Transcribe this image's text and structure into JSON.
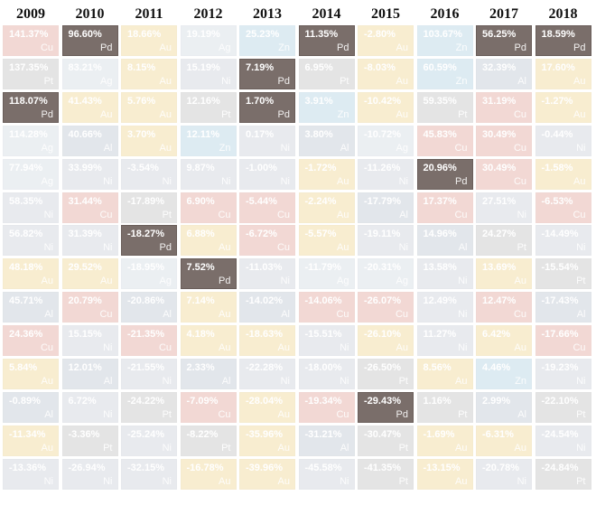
{
  "chart_data": {
    "type": "table",
    "title": "",
    "highlight_symbol": "Pd",
    "columns": [
      "2009",
      "2010",
      "2011",
      "2012",
      "2013",
      "2014",
      "2015",
      "2016",
      "2017",
      "2018"
    ],
    "rows": [
      [
        [
          "141.37%",
          "Cu"
        ],
        [
          "96.60%",
          "Pd"
        ],
        [
          "18.66%",
          "Au"
        ],
        [
          "19.19%",
          "Ag"
        ],
        [
          "25.23%",
          "Zn"
        ],
        [
          "11.35%",
          "Pd"
        ],
        [
          "-2.80%",
          "Au"
        ],
        [
          "103.67%",
          "Zn"
        ],
        [
          "56.25%",
          "Pd"
        ],
        [
          "18.59%",
          "Pd"
        ]
      ],
      [
        [
          "137.35%",
          "Pt"
        ],
        [
          "83.21%",
          "Ag"
        ],
        [
          "8.15%",
          "Au"
        ],
        [
          "15.19%",
          "Ni"
        ],
        [
          "7.19%",
          "Pd"
        ],
        [
          "6.95%",
          "Pt"
        ],
        [
          "-8.03%",
          "Au"
        ],
        [
          "60.59%",
          "Zn"
        ],
        [
          "32.39%",
          "Al"
        ],
        [
          "17.60%",
          "Au"
        ]
      ],
      [
        [
          "118.07%",
          "Pd"
        ],
        [
          "41.43%",
          "Au"
        ],
        [
          "5.76%",
          "Au"
        ],
        [
          "12.16%",
          "Pt"
        ],
        [
          "1.70%",
          "Pd"
        ],
        [
          "3.91%",
          "Zn"
        ],
        [
          "-10.42%",
          "Au"
        ],
        [
          "59.35%",
          "Pt"
        ],
        [
          "31.19%",
          "Cu"
        ],
        [
          "-1.27%",
          "Au"
        ]
      ],
      [
        [
          "114.28%",
          "Ag"
        ],
        [
          "40.66%",
          "Al"
        ],
        [
          "3.70%",
          "Au"
        ],
        [
          "12.11%",
          "Zn"
        ],
        [
          "0.17%",
          "Ni"
        ],
        [
          "3.80%",
          "Al"
        ],
        [
          "-10.72%",
          "Ag"
        ],
        [
          "45.83%",
          "Cu"
        ],
        [
          "30.49%",
          "Cu"
        ],
        [
          "-0.44%",
          "Ni"
        ]
      ],
      [
        [
          "77.94%",
          "Ag"
        ],
        [
          "33.99%",
          "Ni"
        ],
        [
          "-3.54%",
          "Ni"
        ],
        [
          "9.87%",
          "Ni"
        ],
        [
          "-1.00%",
          "Ni"
        ],
        [
          "-1.72%",
          "Au"
        ],
        [
          "-11.26%",
          "Ni"
        ],
        [
          "20.96%",
          "Pd"
        ],
        [
          "30.49%",
          "Cu"
        ],
        [
          "-1.58%",
          "Au"
        ]
      ],
      [
        [
          "58.35%",
          "Ni"
        ],
        [
          "31.44%",
          "Cu"
        ],
        [
          "-17.89%",
          "Pt"
        ],
        [
          "6.90%",
          "Cu"
        ],
        [
          "-5.44%",
          "Cu"
        ],
        [
          "-2.24%",
          "Au"
        ],
        [
          "-17.79%",
          "Al"
        ],
        [
          "17.37%",
          "Cu"
        ],
        [
          "27.51%",
          "Ni"
        ],
        [
          "-6.53%",
          "Cu"
        ]
      ],
      [
        [
          "56.82%",
          "Ni"
        ],
        [
          "31.39%",
          "Ni"
        ],
        [
          "-18.27%",
          "Pd"
        ],
        [
          "6.88%",
          "Au"
        ],
        [
          "-6.72%",
          "Cu"
        ],
        [
          "-5.57%",
          "Au"
        ],
        [
          "-19.11%",
          "Ni"
        ],
        [
          "14.96%",
          "Al"
        ],
        [
          "24.27%",
          "Pt"
        ],
        [
          "-14.49%",
          "Ni"
        ]
      ],
      [
        [
          "48.18%",
          "Au"
        ],
        [
          "29.52%",
          "Au"
        ],
        [
          "-18.95%",
          "Ag"
        ],
        [
          "7.52%",
          "Pd"
        ],
        [
          "-11.03%",
          "Ni"
        ],
        [
          "-11.79%",
          "Ag"
        ],
        [
          "-20.31%",
          "Ag"
        ],
        [
          "13.58%",
          "Ni"
        ],
        [
          "13.69%",
          "Au"
        ],
        [
          "-15.54%",
          "Pt"
        ]
      ],
      [
        [
          "45.71%",
          "Al"
        ],
        [
          "20.79%",
          "Cu"
        ],
        [
          "-20.86%",
          "Al"
        ],
        [
          "7.14%",
          "Au"
        ],
        [
          "-14.02%",
          "Al"
        ],
        [
          "-14.06%",
          "Cu"
        ],
        [
          "-26.07%",
          "Cu"
        ],
        [
          "12.49%",
          "Ni"
        ],
        [
          "12.47%",
          "Cu"
        ],
        [
          "-17.43%",
          "Al"
        ]
      ],
      [
        [
          "24.36%",
          "Cu"
        ],
        [
          "15.15%",
          "Ni"
        ],
        [
          "-21.35%",
          "Cu"
        ],
        [
          "4.18%",
          "Au"
        ],
        [
          "-18.63%",
          "Au"
        ],
        [
          "-15.51%",
          "Ni"
        ],
        [
          "-26.10%",
          "Au"
        ],
        [
          "11.27%",
          "Ni"
        ],
        [
          "6.42%",
          "Au"
        ],
        [
          "-17.66%",
          "Cu"
        ]
      ],
      [
        [
          "5.84%",
          "Au"
        ],
        [
          "12.01%",
          "Al"
        ],
        [
          "-21.55%",
          "Ni"
        ],
        [
          "2.33%",
          "Al"
        ],
        [
          "-22.28%",
          "Ni"
        ],
        [
          "-18.00%",
          "Ni"
        ],
        [
          "-26.50%",
          "Pt"
        ],
        [
          "8.56%",
          "Au"
        ],
        [
          "4.46%",
          "Zn"
        ],
        [
          "-19.23%",
          "Ni"
        ]
      ],
      [
        [
          "-0.89%",
          "Al"
        ],
        [
          "6.72%",
          "Ni"
        ],
        [
          "-24.22%",
          "Pt"
        ],
        [
          "-7.09%",
          "Cu"
        ],
        [
          "-28.04%",
          "Au"
        ],
        [
          "-19.34%",
          "Cu"
        ],
        [
          "-29.43%",
          "Pd"
        ],
        [
          "1.16%",
          "Pt"
        ],
        [
          "2.99%",
          "Al"
        ],
        [
          "-22.10%",
          "Pt"
        ]
      ],
      [
        [
          "-11.34%",
          "Au"
        ],
        [
          "-3.36%",
          "Pt"
        ],
        [
          "-25.24%",
          "Ni"
        ],
        [
          "-8.22%",
          "Pt"
        ],
        [
          "-35.96%",
          "Au"
        ],
        [
          "-31.21%",
          "Al"
        ],
        [
          "-30.47%",
          "Pt"
        ],
        [
          "-1.69%",
          "Au"
        ],
        [
          "-6.31%",
          "Au"
        ],
        [
          "-24.54%",
          "Ni"
        ]
      ],
      [
        [
          "-13.36%",
          "Ni"
        ],
        [
          "-26.94%",
          "Ni"
        ],
        [
          "-32.15%",
          "Ni"
        ],
        [
          "-16.78%",
          "Au"
        ],
        [
          "-39.96%",
          "Au"
        ],
        [
          "-45.58%",
          "Ni"
        ],
        [
          "-41.35%",
          "Pt"
        ],
        [
          "-13.15%",
          "Au"
        ],
        [
          "-20.78%",
          "Ni"
        ],
        [
          "-24.84%",
          "Pt"
        ]
      ]
    ],
    "colors": {
      "highlight": "#7a6e6a",
      "Cu": "#c8533f",
      "Pt": "#8a8a8a",
      "Pd": "#7a6e6a",
      "Ag": "#a9b8c9",
      "Au": "#e3b12e",
      "Zn": "#6aa8c9",
      "Ni": "#9aa3b6",
      "Al": "#7f8fa6"
    }
  }
}
